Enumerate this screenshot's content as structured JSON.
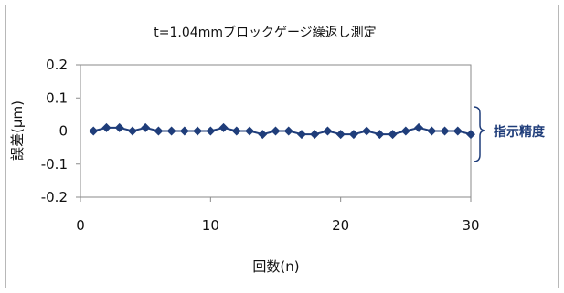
{
  "chart_data": {
    "type": "line",
    "title": "t=1.04mmブロックゲージ繰返し測定",
    "xlabel": "回数(n)",
    "ylabel": "誤差(μm)",
    "xlim": [
      0,
      30
    ],
    "ylim": [
      -0.2,
      0.2
    ],
    "xticks": [
      "0",
      "10",
      "20",
      "30"
    ],
    "yticks": [
      "0.2",
      "0.1",
      "0",
      "-0.1",
      "-0.2"
    ],
    "grid": false,
    "marker": "diamond",
    "color": "#1f3d7a",
    "series": [
      {
        "x": [
          1,
          2,
          3,
          4,
          5,
          6,
          7,
          8,
          9,
          10,
          11,
          12,
          13,
          14,
          15,
          16,
          17,
          18,
          19,
          20,
          21,
          22,
          23,
          24,
          25,
          26,
          27,
          28,
          29,
          30
        ],
        "values": [
          0,
          0.01,
          0.01,
          0,
          0.01,
          0,
          0,
          0,
          0,
          0,
          0.01,
          0,
          0,
          -0.01,
          0,
          0,
          -0.01,
          -0.01,
          0,
          -0.01,
          -0.01,
          0,
          -0.01,
          -0.01,
          0,
          0.01,
          0,
          0,
          0,
          -0.01
        ]
      }
    ],
    "annotation": {
      "text": "指示精度",
      "color": "#1f3d7a"
    }
  }
}
